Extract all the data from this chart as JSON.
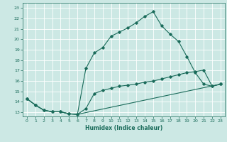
{
  "xlabel": "Humidex (Indice chaleur)",
  "bg_color": "#cce8e4",
  "line_color": "#1a6b5a",
  "grid_color": "#ffffff",
  "xlim": [
    -0.5,
    23.5
  ],
  "ylim": [
    12.6,
    23.5
  ],
  "xticks": [
    0,
    1,
    2,
    3,
    4,
    5,
    6,
    7,
    8,
    9,
    10,
    11,
    12,
    13,
    14,
    15,
    16,
    17,
    18,
    19,
    20,
    21,
    22,
    23
  ],
  "yticks": [
    13,
    14,
    15,
    16,
    17,
    18,
    19,
    20,
    21,
    22,
    23
  ],
  "line1_x": [
    0,
    1,
    2,
    3,
    4,
    5,
    6,
    7,
    8,
    9,
    10,
    11,
    12,
    13,
    14,
    15,
    16,
    17,
    18,
    19,
    20,
    21,
    22,
    23
  ],
  "line1_y": [
    14.3,
    13.7,
    13.2,
    13.05,
    13.05,
    12.85,
    12.8,
    17.2,
    18.7,
    19.2,
    20.3,
    20.7,
    21.1,
    21.6,
    22.2,
    22.65,
    21.3,
    20.5,
    19.8,
    18.35,
    16.8,
    15.7,
    15.5,
    15.7
  ],
  "line2_x": [
    0,
    1,
    2,
    3,
    4,
    5,
    6,
    7,
    8,
    9,
    10,
    11,
    12,
    13,
    14,
    15,
    16,
    17,
    18,
    19,
    20,
    21,
    22,
    23
  ],
  "line2_y": [
    14.3,
    13.7,
    13.2,
    13.05,
    13.05,
    12.85,
    12.8,
    13.35,
    14.8,
    15.1,
    15.3,
    15.5,
    15.6,
    15.7,
    15.9,
    16.0,
    16.2,
    16.4,
    16.6,
    16.8,
    16.9,
    17.05,
    15.5,
    15.7
  ],
  "line3_x": [
    0,
    1,
    2,
    3,
    4,
    5,
    6,
    23
  ],
  "line3_y": [
    14.3,
    13.7,
    13.2,
    13.05,
    13.05,
    12.85,
    12.8,
    15.7
  ]
}
